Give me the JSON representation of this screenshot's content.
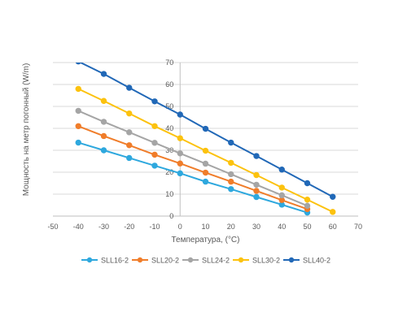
{
  "chart_data": {
    "type": "line",
    "title": "",
    "xlabel": "Температура, (°C)",
    "ylabel": "Мощность на метр погонный (W/m)",
    "xlim": [
      -50,
      70
    ],
    "ylim": [
      0,
      70
    ],
    "xticks": [
      -50,
      -40,
      -30,
      -20,
      -10,
      0,
      10,
      20,
      30,
      40,
      50,
      60,
      70
    ],
    "yticks": [
      0,
      10,
      20,
      30,
      40,
      50,
      60,
      70
    ],
    "grid": "horizontal",
    "legend_position": "bottom",
    "series": [
      {
        "name": "SLL16-2",
        "color": "#2ea8de",
        "x": [
          -40,
          -30,
          -20,
          -10,
          0,
          10,
          20,
          30,
          40,
          50
        ],
        "y": [
          33.5,
          30,
          26.5,
          23,
          19.5,
          15.7,
          12.3,
          8.7,
          5.2,
          1.6
        ]
      },
      {
        "name": "SLL20-2",
        "color": "#f07d2a",
        "x": [
          -40,
          -30,
          -20,
          -10,
          0,
          10,
          20,
          30,
          40,
          50
        ],
        "y": [
          41,
          36.5,
          32.3,
          28,
          24,
          19.8,
          15.7,
          11.5,
          7.3,
          3.2
        ]
      },
      {
        "name": "SLL24-2",
        "color": "#a5a5a5",
        "x": [
          -40,
          -30,
          -20,
          -10,
          0,
          10,
          20,
          30,
          40,
          50
        ],
        "y": [
          48,
          43,
          38.2,
          33.4,
          28.6,
          23.9,
          19.1,
          14.3,
          9.5,
          4.7
        ]
      },
      {
        "name": "SLL30-2",
        "color": "#fcc20e",
        "x": [
          -40,
          -30,
          -20,
          -10,
          0,
          10,
          20,
          30,
          40,
          50,
          60
        ],
        "y": [
          58,
          52.5,
          46.8,
          41,
          35.5,
          29.8,
          24.3,
          18.7,
          13,
          7.5,
          1.9
        ]
      },
      {
        "name": "SLL40-2",
        "color": "#2168b7",
        "x": [
          -40,
          -30,
          -20,
          -10,
          0,
          10,
          20,
          30,
          40,
          50,
          60
        ],
        "y": [
          70.5,
          64.8,
          58.5,
          52.3,
          46.3,
          39.8,
          33.5,
          27.4,
          21.2,
          15,
          8.8
        ]
      }
    ]
  }
}
